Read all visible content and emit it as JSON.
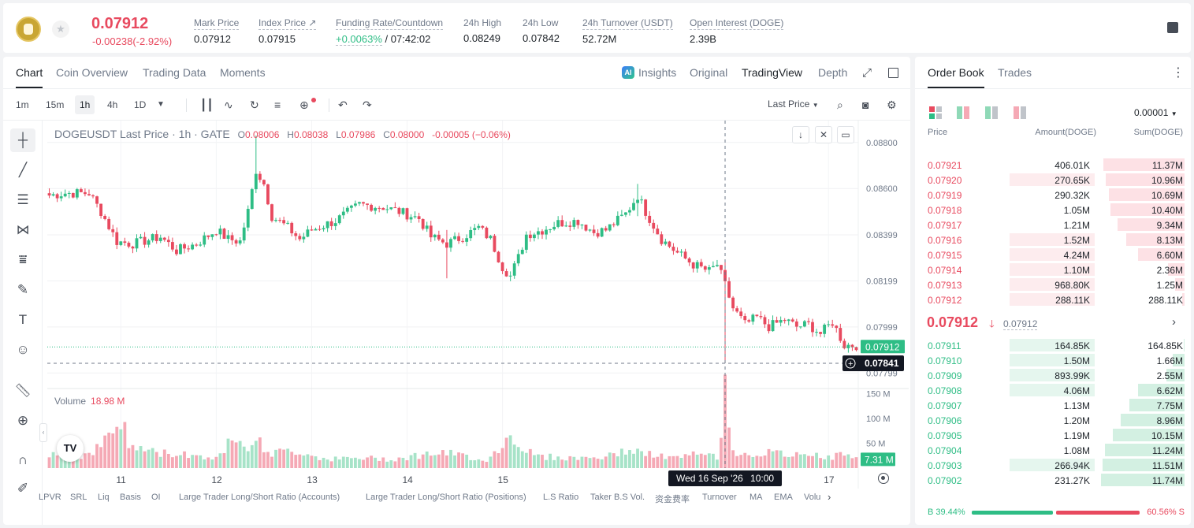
{
  "header": {
    "last_price": "0.07912",
    "change": "-0.00238(-2.92%)",
    "stats": [
      {
        "label": "Mark Price",
        "value": "0.07912"
      },
      {
        "label": "Index Price ↗",
        "value": "0.07915"
      },
      {
        "label": "Funding Rate/Countdown",
        "value_pos": "+0.0063%",
        "value": " / 07:42:02"
      },
      {
        "label": "24h High",
        "value": "0.08249"
      },
      {
        "label": "24h Low",
        "value": "0.07842"
      },
      {
        "label": "24h Turnover (USDT)",
        "value": "52.72M"
      },
      {
        "label": "Open Interest (DOGE)",
        "value": "2.39B"
      }
    ]
  },
  "chart_panel": {
    "tabs": [
      "Chart",
      "Coin Overview",
      "Trading Data",
      "Moments"
    ],
    "views": [
      "Insights",
      "Original",
      "TradingView",
      "Depth"
    ],
    "ai_badge": "AI",
    "intervals": [
      "1m",
      "15m",
      "1h",
      "4h",
      "1D"
    ],
    "price_source": "Last Price"
  },
  "legend": {
    "symbol": "DOGEUSDT Last Price · 1h · GATE",
    "o": "0.08006",
    "h": "0.08038",
    "l": "0.07986",
    "c": "0.08000",
    "change": "-0.00005 (−0.06%)"
  },
  "volume_legend": {
    "label": "Volume",
    "value": "18.98 M"
  },
  "tv_logo": "TV",
  "indicators": [
    "LPVR",
    "SRL",
    "Liq",
    "Basis",
    "OI",
    "Large Trader Long/Short Ratio (Accounts)",
    "Large Trader Long/Short Ratio (Positions)",
    "L.S Ratio",
    "Taker B.S Vol.",
    "资金费率",
    "Turnover",
    "MA",
    "EMA",
    "Volu"
  ],
  "chart_data": {
    "type": "candlestick",
    "title": "DOGEUSDT Last Price · 1h · GATE",
    "price_axis": {
      "ticks": [
        0.088,
        0.086,
        0.08399,
        0.08199,
        0.07999,
        0.07799
      ],
      "labels": [
        "0.08800",
        "0.08600",
        "0.08399",
        "0.08199",
        "0.07999",
        "0.07799"
      ],
      "range": [
        0.07735,
        0.08895
      ]
    },
    "volume_axis": {
      "ticks": [
        50,
        100,
        150
      ],
      "labels": [
        "50 M",
        "100 M",
        "150 M"
      ],
      "unit": "M"
    },
    "time_axis": {
      "labels": [
        "11",
        "12",
        "13",
        "14",
        "15",
        "17"
      ],
      "hours_range": [
        0,
        130
      ]
    },
    "crosshair": {
      "time_label": "Wed 16 Sep '26",
      "hour": "10:00",
      "price_label": "0.07841",
      "price": 0.07841,
      "at_hour": 108
    },
    "current_price": {
      "label": "0.07912",
      "value": 0.07912
    },
    "last_volume_label": "7.31 M",
    "last_volume": 7.31,
    "keypoints": [
      [
        0,
        0.0857
      ],
      [
        4,
        0.0858
      ],
      [
        10,
        0.0858
      ],
      [
        13,
        0.085
      ],
      [
        17,
        0.0837
      ],
      [
        21,
        0.0836
      ],
      [
        28,
        0.0839
      ],
      [
        32,
        0.0833
      ],
      [
        37,
        0.0836
      ],
      [
        42,
        0.0842
      ],
      [
        45,
        0.0838
      ],
      [
        48,
        0.0837
      ],
      [
        50,
        0.085
      ],
      [
        52,
        0.0868
      ],
      [
        54,
        0.0862
      ],
      [
        56,
        0.0848
      ],
      [
        60,
        0.0843
      ],
      [
        63,
        0.0838
      ],
      [
        66,
        0.0842
      ],
      [
        72,
        0.0846
      ],
      [
        78,
        0.0853
      ],
      [
        84,
        0.0852
      ],
      [
        88,
        0.085
      ],
      [
        93,
        0.0847
      ],
      [
        96,
        0.0839
      ],
      [
        100,
        0.0836
      ],
      [
        104,
        0.0839
      ],
      [
        108,
        0.0843
      ],
      [
        111,
        0.0838
      ],
      [
        114,
        0.0826
      ],
      [
        116,
        0.0822
      ],
      [
        118,
        0.083
      ],
      [
        120,
        0.084
      ],
      [
        124,
        0.0842
      ],
      [
        128,
        0.0845
      ],
      [
        133,
        0.0846
      ],
      [
        137,
        0.0841
      ],
      [
        140,
        0.0842
      ],
      [
        145,
        0.0849
      ],
      [
        148,
        0.0857
      ],
      [
        150,
        0.085
      ],
      [
        154,
        0.0838
      ],
      [
        158,
        0.0832
      ],
      [
        162,
        0.0827
      ],
      [
        166,
        0.0824
      ],
      [
        168,
        0.0827
      ],
      [
        170,
        0.0818
      ],
      [
        172,
        0.0808
      ],
      [
        175,
        0.0801
      ],
      [
        178,
        0.0804
      ],
      [
        181,
        0.08
      ],
      [
        185,
        0.0803
      ],
      [
        188,
        0.08
      ],
      [
        191,
        0.0801
      ],
      [
        194,
        0.0797
      ],
      [
        197,
        0.0802
      ],
      [
        200,
        0.0792
      ],
      [
        203,
        0.0792
      ]
    ],
    "volume_keypoints": [
      [
        0,
        30
      ],
      [
        8,
        25
      ],
      [
        12,
        40
      ],
      [
        16,
        75
      ],
      [
        18,
        100
      ],
      [
        20,
        45
      ],
      [
        28,
        30
      ],
      [
        35,
        28
      ],
      [
        40,
        22
      ],
      [
        44,
        25
      ],
      [
        46,
        78
      ],
      [
        48,
        62
      ],
      [
        50,
        48
      ],
      [
        52,
        55
      ],
      [
        56,
        30
      ],
      [
        62,
        35
      ],
      [
        70,
        18
      ],
      [
        80,
        20
      ],
      [
        86,
        18
      ],
      [
        90,
        22
      ],
      [
        96,
        30
      ],
      [
        102,
        28
      ],
      [
        110,
        16
      ],
      [
        114,
        45
      ],
      [
        116,
        70
      ],
      [
        118,
        50
      ],
      [
        122,
        25
      ],
      [
        130,
        20
      ],
      [
        140,
        22
      ],
      [
        146,
        38
      ],
      [
        150,
        28
      ],
      [
        158,
        20
      ],
      [
        164,
        30
      ],
      [
        168,
        22
      ],
      [
        170,
        148
      ],
      [
        172,
        35
      ],
      [
        176,
        28
      ],
      [
        182,
        30
      ],
      [
        188,
        25
      ],
      [
        192,
        32
      ],
      [
        196,
        20
      ],
      [
        200,
        30
      ],
      [
        203,
        18
      ]
    ]
  },
  "order_book": {
    "tabs": [
      "Order Book",
      "Trades"
    ],
    "precision": "0.00001",
    "headers": {
      "price": "Price",
      "amount": "Amount(DOGE)",
      "sum": "Sum(DOGE)"
    },
    "asks": [
      {
        "price": "0.07921",
        "amount": "406.01K",
        "sum": "11.37M",
        "amount_frac": 0.0,
        "sum_frac": 0.97
      },
      {
        "price": "0.07920",
        "amount": "270.65K",
        "sum": "10.96M",
        "amount_frac": 0.52,
        "sum_frac": 0.94
      },
      {
        "price": "0.07919",
        "amount": "290.32K",
        "sum": "10.69M",
        "amount_frac": 0.0,
        "sum_frac": 0.91
      },
      {
        "price": "0.07918",
        "amount": "1.05M",
        "sum": "10.40M",
        "amount_frac": 0.0,
        "sum_frac": 0.89
      },
      {
        "price": "0.07917",
        "amount": "1.21M",
        "sum": "9.34M",
        "amount_frac": 0.0,
        "sum_frac": 0.8
      },
      {
        "price": "0.07916",
        "amount": "1.52M",
        "sum": "8.13M",
        "amount_frac": 0.52,
        "sum_frac": 0.7
      },
      {
        "price": "0.07915",
        "amount": "4.24M",
        "sum": "6.60M",
        "amount_frac": 0.52,
        "sum_frac": 0.56
      },
      {
        "price": "0.07914",
        "amount": "1.10M",
        "sum": "2.36M",
        "amount_frac": 0.52,
        "sum_frac": 0.2
      },
      {
        "price": "0.07913",
        "amount": "968.80K",
        "sum": "1.25M",
        "amount_frac": 0.52,
        "sum_frac": 0.11
      },
      {
        "price": "0.07912",
        "amount": "288.11K",
        "sum": "288.11K",
        "amount_frac": 0.52,
        "sum_frac": 0.025
      }
    ],
    "mid_price": "0.07912",
    "mid_arrow": "🡓",
    "mid_mark": "0.07912",
    "bids": [
      {
        "price": "0.07911",
        "amount": "164.85K",
        "sum": "164.85K",
        "amount_frac": 0.52,
        "sum_frac": 0.014
      },
      {
        "price": "0.07910",
        "amount": "1.50M",
        "sum": "1.66M",
        "amount_frac": 0.52,
        "sum_frac": 0.14
      },
      {
        "price": "0.07909",
        "amount": "893.99K",
        "sum": "2.55M",
        "amount_frac": 0.52,
        "sum_frac": 0.22
      },
      {
        "price": "0.07908",
        "amount": "4.06M",
        "sum": "6.62M",
        "amount_frac": 0.52,
        "sum_frac": 0.56
      },
      {
        "price": "0.07907",
        "amount": "1.13M",
        "sum": "7.75M",
        "amount_frac": 0.0,
        "sum_frac": 0.66
      },
      {
        "price": "0.07906",
        "amount": "1.20M",
        "sum": "8.96M",
        "amount_frac": 0.0,
        "sum_frac": 0.76
      },
      {
        "price": "0.07905",
        "amount": "1.19M",
        "sum": "10.15M",
        "amount_frac": 0.0,
        "sum_frac": 0.86
      },
      {
        "price": "0.07904",
        "amount": "1.08M",
        "sum": "11.24M",
        "amount_frac": 0.0,
        "sum_frac": 0.95
      },
      {
        "price": "0.07903",
        "amount": "266.94K",
        "sum": "11.51M",
        "amount_frac": 0.52,
        "sum_frac": 0.98
      },
      {
        "price": "0.07902",
        "amount": "231.27K",
        "sum": "11.74M",
        "amount_frac": 0.0,
        "sum_frac": 1.0
      }
    ],
    "ratio": {
      "buy_label": "B 39.44%",
      "sell_label": "60.56% S",
      "buy": 0.3944,
      "sell": 0.6056
    }
  },
  "colors": {
    "up": "#2ebd85",
    "down": "#e84a5f",
    "up_vol": "#a7e3c8",
    "down_vol": "#f5a9b5",
    "ask_bg": "#fdecee",
    "bid_bg": "#e5f6ee"
  }
}
